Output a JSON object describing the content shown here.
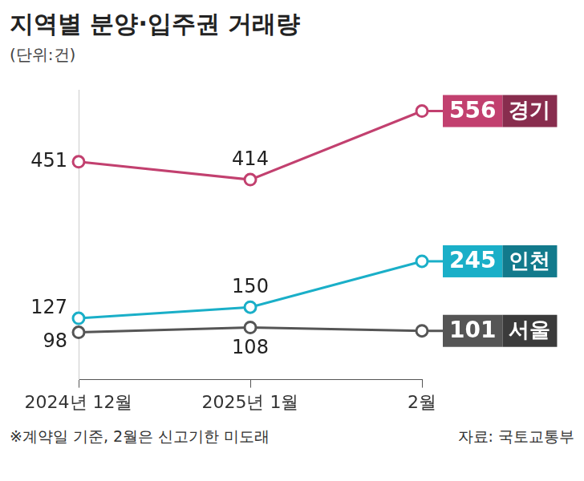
{
  "chart_data": {
    "type": "line",
    "title": "지역별 분양·입주권 거래량",
    "subtitle": "(단위:건)",
    "categories": [
      "2024년 12월",
      "2025년 1월",
      "2월"
    ],
    "series": [
      {
        "name": "경기",
        "color": "#c2406f",
        "values": [
          451,
          414,
          556
        ]
      },
      {
        "name": "인천",
        "color": "#1aafc8",
        "values": [
          127,
          150,
          245
        ]
      },
      {
        "name": "서울",
        "color": "#555555",
        "values": [
          98,
          108,
          101
        ]
      }
    ],
    "ylim": [
      0,
      600
    ],
    "grid": false,
    "data_labels": true,
    "tick_labels": "x",
    "marker": "circle",
    "note": "※계약일 기준, 2월은 신고기한 미도래",
    "source": "자료: 국토교통부"
  }
}
